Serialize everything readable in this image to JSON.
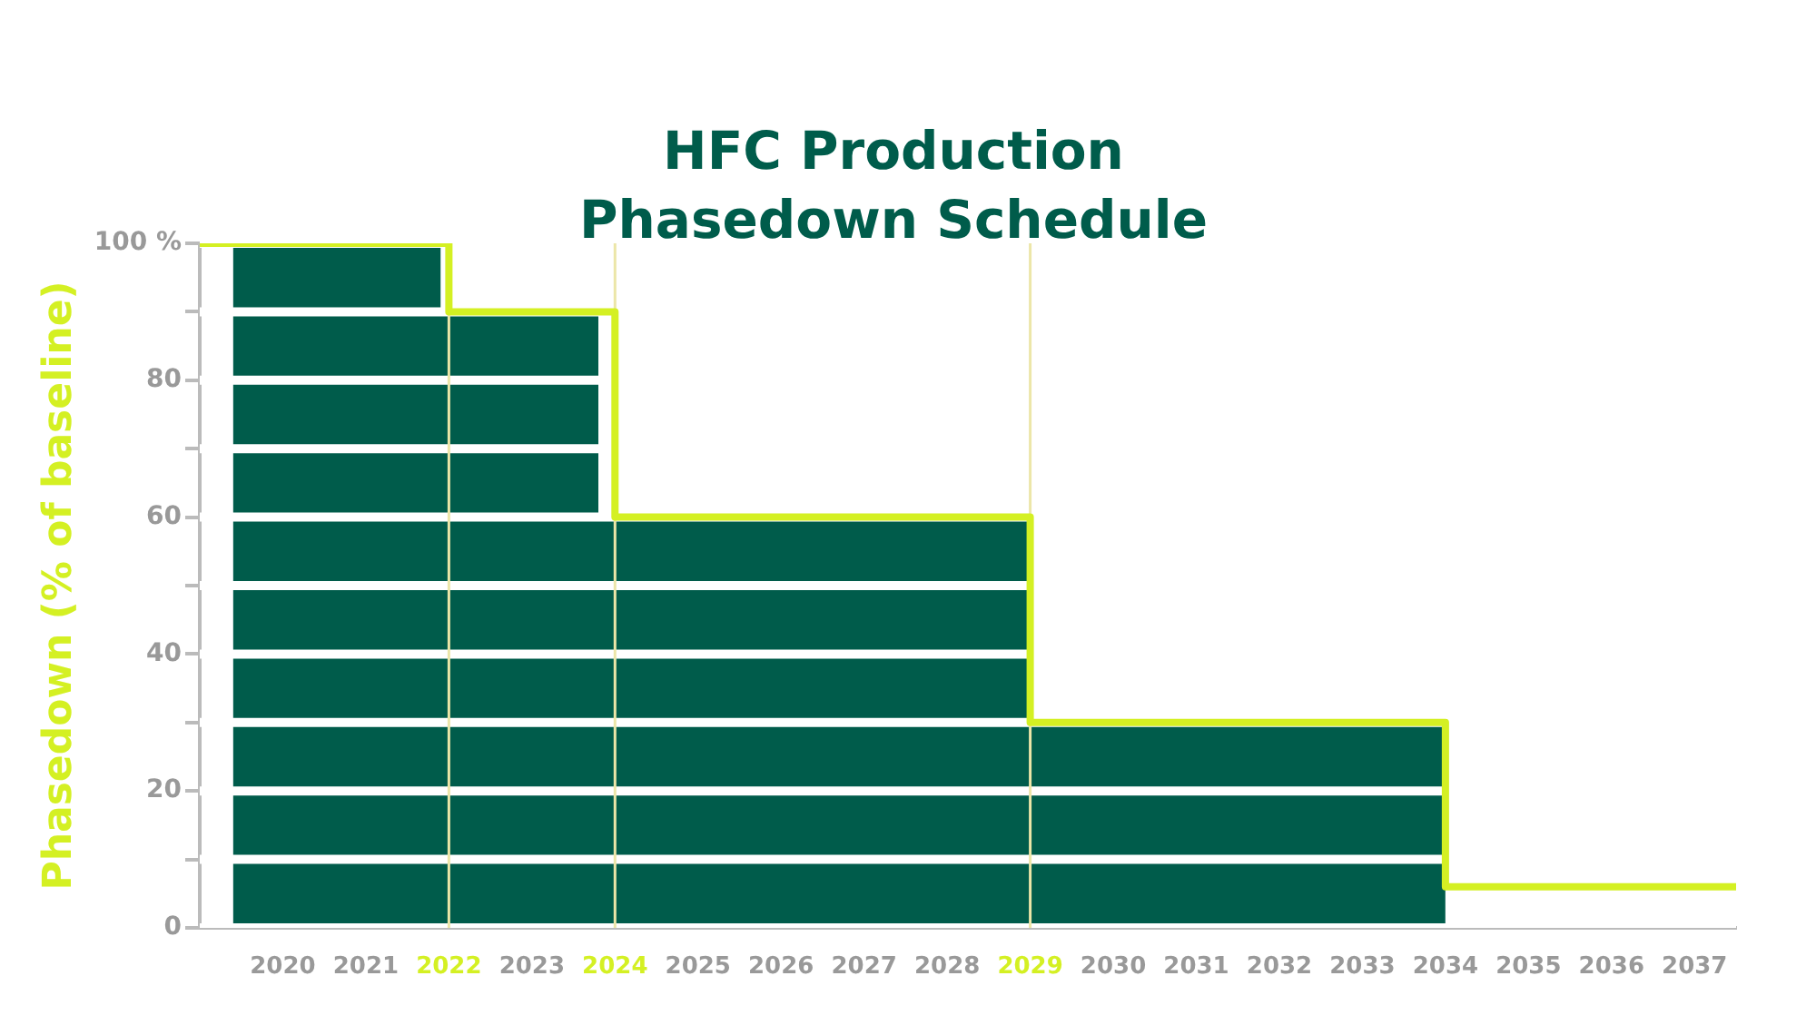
{
  "chart_data": {
    "type": "step",
    "title": "HFC Production Phasedown Schedule",
    "ylabel": "Phasedown (% of baseline)",
    "series": [
      {
        "type": "area",
        "color": "#005c4b",
        "x": [
          2019.4,
          2021.9,
          2023.8,
          2029,
          2034
        ],
        "values": [
          100,
          90,
          60,
          30,
          30
        ]
      },
      {
        "type": "step",
        "color": "#d4f023",
        "x": [
          2019,
          2022,
          2024,
          2029,
          2034,
          2037.5
        ],
        "values": [
          100,
          90,
          60,
          30,
          6,
          6
        ]
      }
    ],
    "xlim": [
      2019,
      2037.5
    ],
    "xticks": [
      2020,
      2021,
      2022,
      2023,
      2024,
      2025,
      2026,
      2027,
      2028,
      2029,
      2030,
      2031,
      2032,
      2033,
      2034,
      2035,
      2036,
      2037
    ],
    "ylim": [
      0,
      100
    ],
    "yticks": [
      0,
      {
        "value": 10,
        "label": null
      },
      20,
      {
        "value": 30,
        "label": null
      },
      40,
      {
        "value": 50,
        "label": null
      },
      60,
      {
        "value": 70,
        "label": null
      },
      80,
      {
        "value": 90,
        "label": null
      },
      {
        "value": 100,
        "label": "100 %"
      }
    ],
    "ref_lines": [
      {
        "axis": "x",
        "value": 2022,
        "color": "#ece6a8"
      },
      {
        "axis": "x",
        "value": 2024,
        "color": "#ece6a8"
      },
      {
        "axis": "x",
        "value": 2029,
        "color": "#ece6a8"
      }
    ],
    "grid": "y",
    "legend": false,
    "marker": "none"
  }
}
